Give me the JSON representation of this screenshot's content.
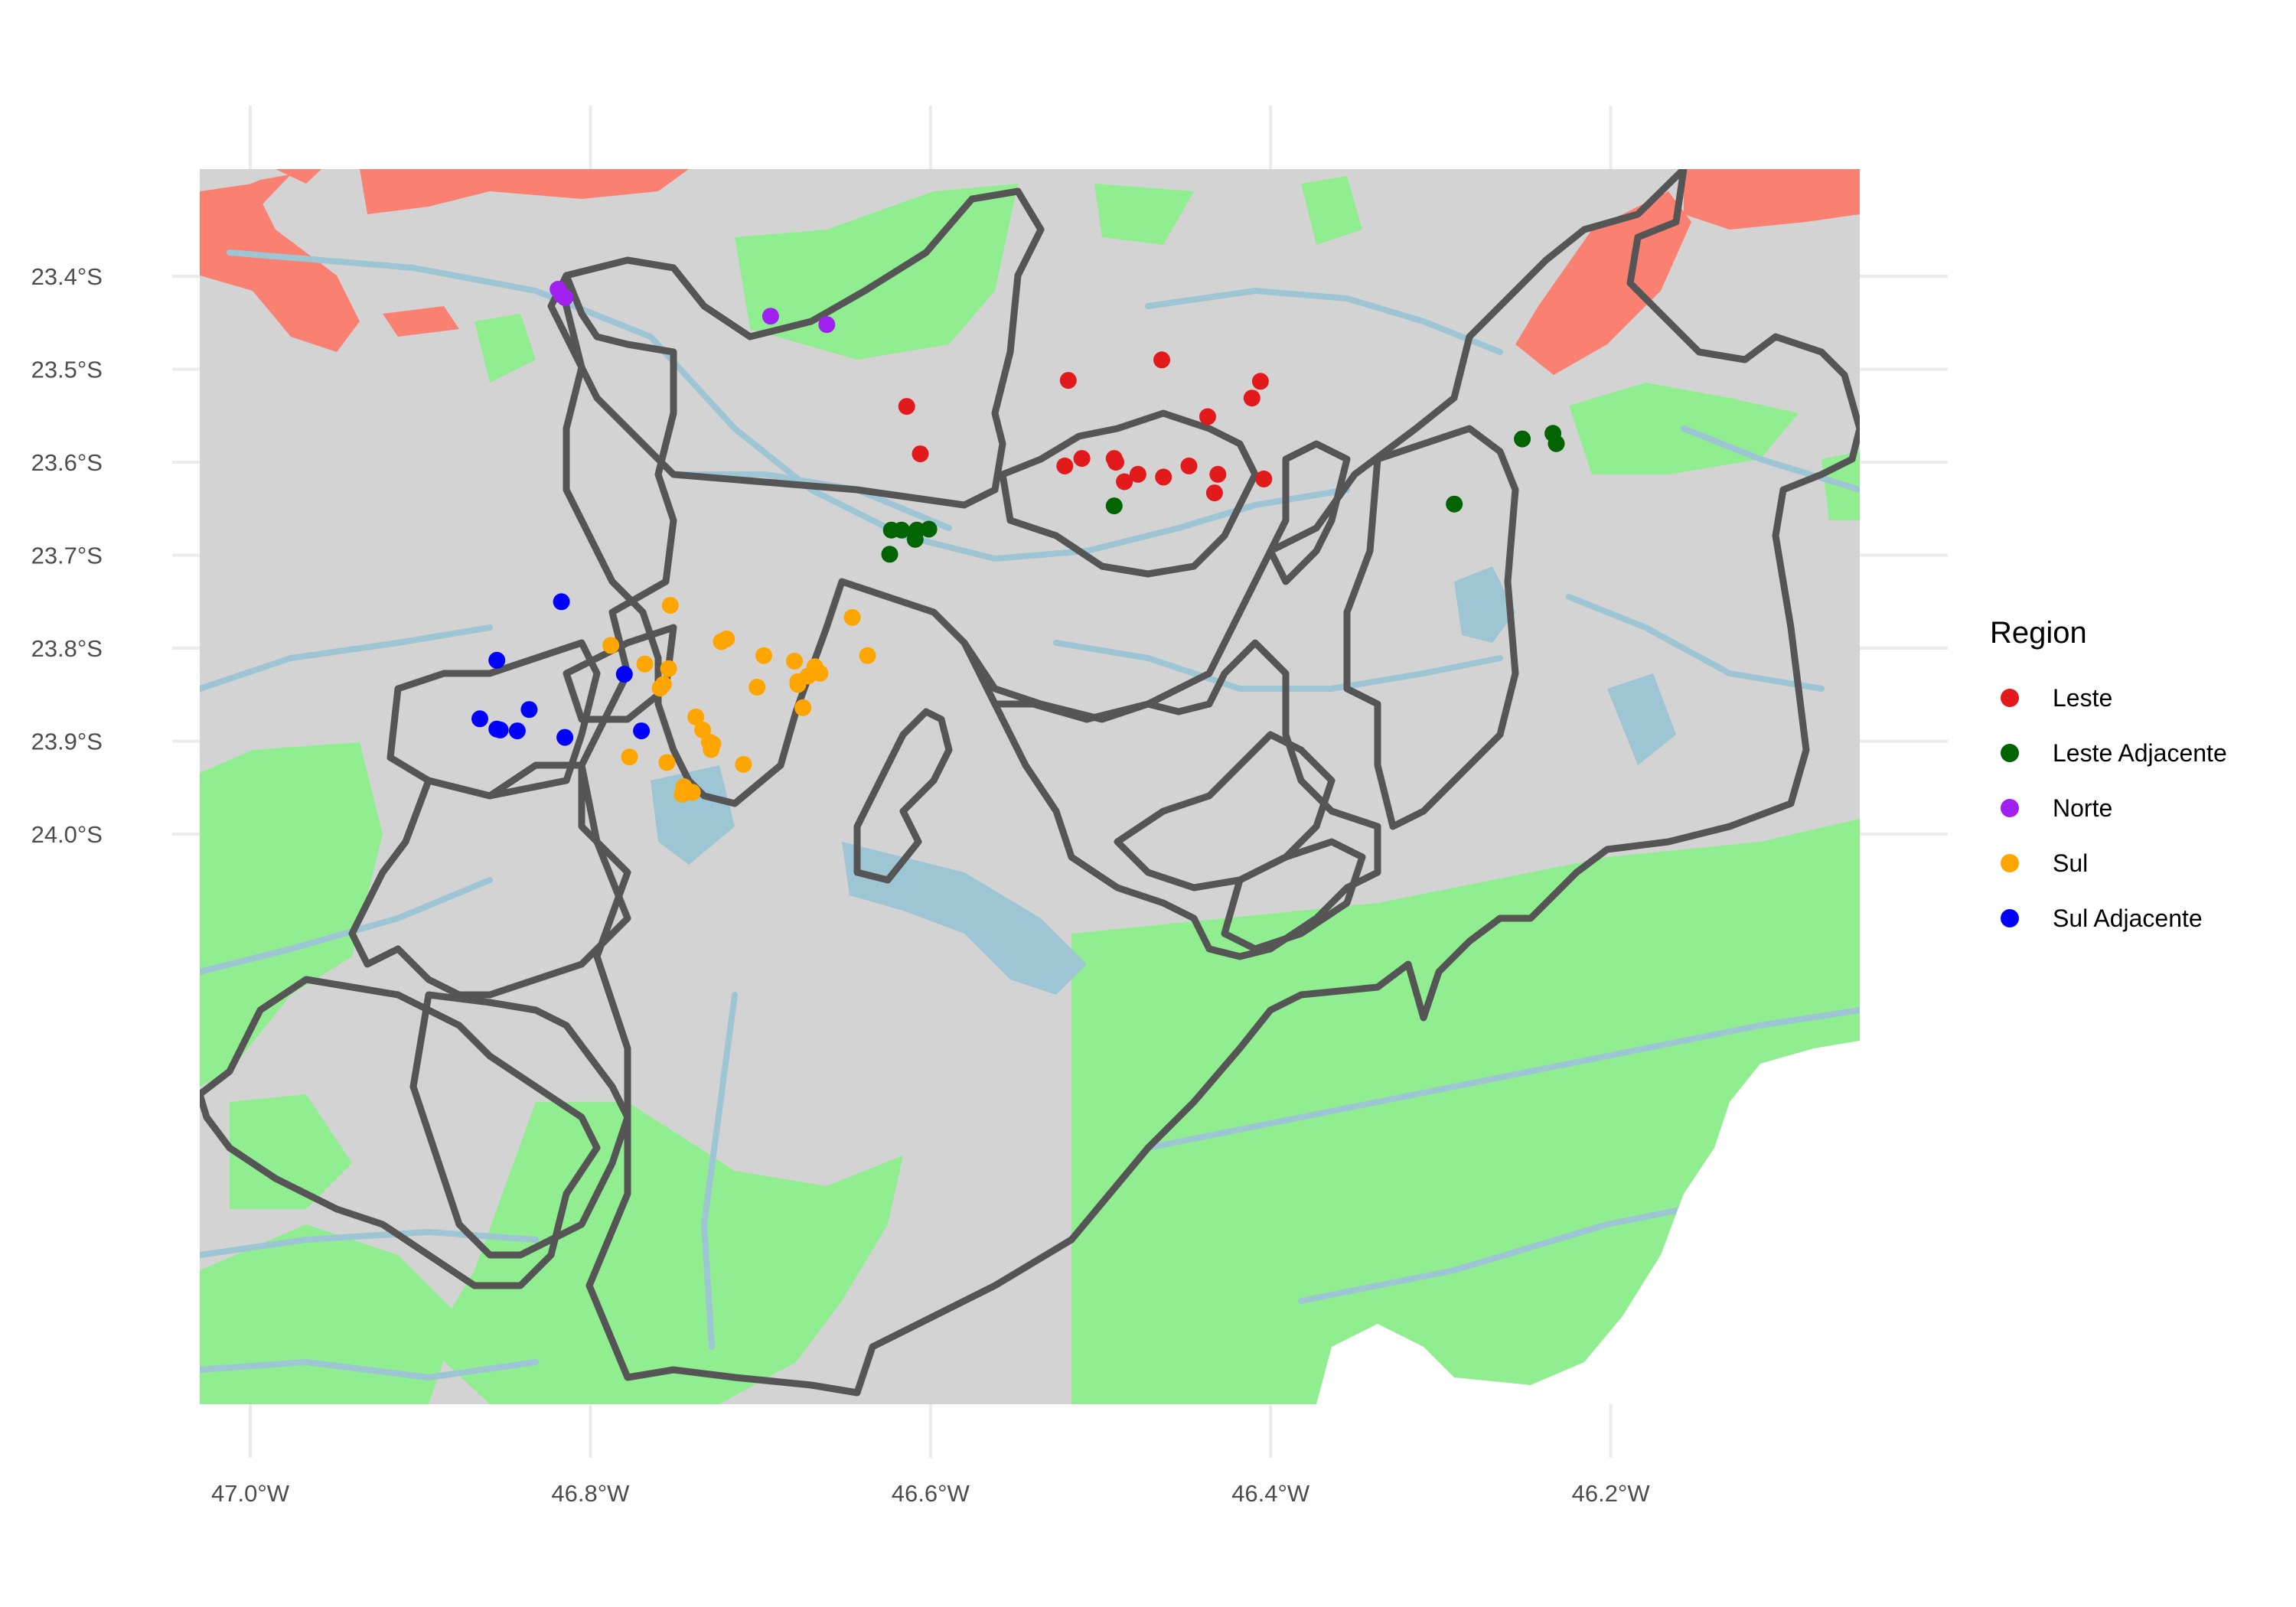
{
  "chart_data": {
    "type": "map",
    "xlim": [
      -47.03,
      -46.25
    ],
    "ylim": [
      -24.01,
      -23.34
    ],
    "x_ticks": [
      {
        "value": -47.0,
        "label": "47.0°W"
      },
      {
        "value": -46.8,
        "label": "46.8°W"
      },
      {
        "value": -46.6,
        "label": "46.6°W"
      },
      {
        "value": -46.4,
        "label": "46.4°W"
      },
      {
        "value": -46.2,
        "label": "46.2°W"
      }
    ],
    "y_ticks": [
      {
        "value": -23.4,
        "label": "23.4°S"
      },
      {
        "value": -23.5,
        "label": "23.5°S"
      },
      {
        "value": -23.6,
        "label": "23.6°S"
      },
      {
        "value": -23.7,
        "label": "23.7°S"
      },
      {
        "value": -23.8,
        "label": "23.8°S"
      },
      {
        "value": -23.9,
        "label": "23.9°S"
      },
      {
        "value": -24.0,
        "label": "24.0°S"
      }
    ],
    "grid": true,
    "legend": {
      "title": "Region",
      "position": "right",
      "entries": [
        {
          "name": "Leste",
          "color": "#e31a1c"
        },
        {
          "name": "Leste Adjacente",
          "color": "#006400"
        },
        {
          "name": "Norte",
          "color": "#a020f0"
        },
        {
          "name": "Sul",
          "color": "#ffa500"
        },
        {
          "name": "Sul Adjacente",
          "color": "#0000ff"
        }
      ]
    },
    "background_colors": {
      "land": "#d3d3d3",
      "vegetation": "#90ee90",
      "urban": "#fa8072",
      "water": "#9ec5d3",
      "boundary": "#555555"
    },
    "series": [
      {
        "name": "Leste",
        "color": "#e31a1c",
        "points": [
          [
            -46.464,
            -23.49
          ],
          [
            -46.519,
            -23.512
          ],
          [
            -46.406,
            -23.513
          ],
          [
            -46.411,
            -23.531
          ],
          [
            -46.614,
            -23.54
          ],
          [
            -46.437,
            -23.551
          ],
          [
            -46.606,
            -23.591
          ],
          [
            -46.511,
            -23.596
          ],
          [
            -46.492,
            -23.596
          ],
          [
            -46.491,
            -23.6
          ],
          [
            -46.521,
            -23.604
          ],
          [
            -46.448,
            -23.604
          ],
          [
            -46.478,
            -23.613
          ],
          [
            -46.431,
            -23.613
          ],
          [
            -46.463,
            -23.616
          ],
          [
            -46.404,
            -23.618
          ],
          [
            -46.486,
            -23.621
          ],
          [
            -46.433,
            -23.633
          ]
        ]
      },
      {
        "name": "Leste Adjacente",
        "color": "#006400",
        "points": [
          [
            -46.234,
            -23.569
          ],
          [
            -46.252,
            -23.575
          ],
          [
            -46.232,
            -23.58
          ],
          [
            -46.292,
            -23.645
          ],
          [
            -46.492,
            -23.647
          ],
          [
            -46.601,
            -23.672
          ],
          [
            -46.623,
            -23.673
          ],
          [
            -46.617,
            -23.673
          ],
          [
            -46.608,
            -23.673
          ],
          [
            -46.609,
            -23.683
          ],
          [
            -46.624,
            -23.699
          ]
        ]
      },
      {
        "name": "Norte",
        "color": "#a020f0",
        "points": [
          [
            -46.819,
            -23.414
          ],
          [
            -46.817,
            -23.42
          ],
          [
            -46.815,
            -23.423
          ],
          [
            -46.694,
            -23.443
          ],
          [
            -46.661,
            -23.452
          ]
        ]
      },
      {
        "name": "Sul",
        "color": "#ffa500",
        "points": [
          [
            -46.753,
            -23.754
          ],
          [
            -46.646,
            -23.767
          ],
          [
            -46.72,
            -23.79
          ],
          [
            -46.723,
            -23.793
          ],
          [
            -46.788,
            -23.797
          ],
          [
            -46.637,
            -23.808
          ],
          [
            -46.698,
            -23.808
          ],
          [
            -46.68,
            -23.814
          ],
          [
            -46.768,
            -23.817
          ],
          [
            -46.668,
            -23.82
          ],
          [
            -46.754,
            -23.822
          ],
          [
            -46.665,
            -23.827
          ],
          [
            -46.672,
            -23.83
          ],
          [
            -46.678,
            -23.836
          ],
          [
            -46.678,
            -23.839
          ],
          [
            -46.757,
            -23.839
          ],
          [
            -46.759,
            -23.843
          ],
          [
            -46.702,
            -23.842
          ],
          [
            -46.675,
            -23.864
          ],
          [
            -46.738,
            -23.874
          ],
          [
            -46.734,
            -23.888
          ],
          [
            -46.73,
            -23.901
          ],
          [
            -46.728,
            -23.903
          ],
          [
            -46.729,
            -23.909
          ],
          [
            -46.777,
            -23.917
          ],
          [
            -46.755,
            -23.923
          ],
          [
            -46.71,
            -23.925
          ],
          [
            -46.745,
            -23.949
          ],
          [
            -46.74,
            -23.955
          ],
          [
            -46.746,
            -23.957
          ]
        ]
      },
      {
        "name": "Sul Adjacente",
        "color": "#0000ff",
        "points": [
          [
            -46.817,
            -23.75
          ],
          [
            -46.855,
            -23.813
          ],
          [
            -46.78,
            -23.828
          ],
          [
            -46.836,
            -23.866
          ],
          [
            -46.865,
            -23.876
          ],
          [
            -46.855,
            -23.887
          ],
          [
            -46.853,
            -23.888
          ],
          [
            -46.843,
            -23.889
          ],
          [
            -46.77,
            -23.889
          ],
          [
            -46.815,
            -23.896
          ]
        ]
      }
    ]
  }
}
